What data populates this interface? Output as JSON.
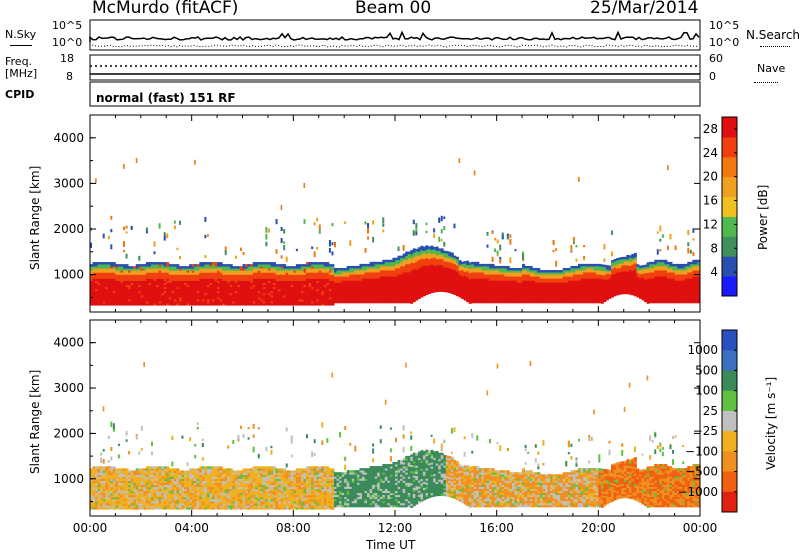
{
  "header": {
    "station": "McMurdo (fitACF)",
    "beam": "Beam 00",
    "date": "25/Mar/2014"
  },
  "top_panels": {
    "nsky_label": "N.Sky",
    "nsearch_label": "N.Search",
    "count_ticks_left": [
      "10^5",
      "10^0"
    ],
    "count_ticks_right": [
      "10^5",
      "10^0"
    ],
    "freq_label": "Freq.",
    "freq_unit": "[MHz]",
    "freq_ticks": [
      "18",
      "8"
    ],
    "nave_label": "Nave",
    "nave_ticks": [
      "60",
      "0"
    ],
    "cpid_label": "CPID",
    "cpid_text": "normal (fast) 151 RF"
  },
  "colors": {
    "power": [
      "#1a1aff",
      "#2a4fb0",
      "#3e8e5e",
      "#4fb84f",
      "#f0c020",
      "#f0a020",
      "#f07a10",
      "#f04010",
      "#e01010"
    ],
    "velocity": [
      "#2a50c0",
      "#3a70c0",
      "#3a8a5a",
      "#60c040",
      "#c0c0c0",
      "#f0b020",
      "#f09020",
      "#f06010",
      "#e02010"
    ]
  },
  "chart_data": [
    {
      "type": "heatmap",
      "title": "Power",
      "ylabel": "Slant Range [km]",
      "xlabel": "",
      "ylim": [
        180,
        4500
      ],
      "y_ticks": [
        "1000",
        "2000",
        "3000",
        "4000"
      ],
      "x_ticks": [
        "00:00",
        "04:00",
        "08:00",
        "12:00",
        "16:00",
        "20:00",
        "00:00"
      ],
      "colorbar_label": "Power [dB]",
      "colorbar_ticks": [
        "4",
        "8",
        "12",
        "16",
        "20",
        "24",
        "28"
      ],
      "colorbar_range": [
        0,
        30
      ]
    },
    {
      "type": "heatmap",
      "title": "Velocity",
      "ylabel": "Slant Range [km]",
      "xlabel": "Time UT",
      "ylim": [
        180,
        4500
      ],
      "y_ticks": [
        "1000",
        "2000",
        "3000",
        "4000"
      ],
      "x_ticks": [
        "00:00",
        "04:00",
        "08:00",
        "12:00",
        "16:00",
        "20:00",
        "00:00"
      ],
      "colorbar_label": "Velocity [m s⁻¹]",
      "colorbar_ticks": [
        "1000",
        "500",
        "100",
        "25",
        "−25",
        "−100",
        "−500",
        "−1000"
      ]
    }
  ]
}
